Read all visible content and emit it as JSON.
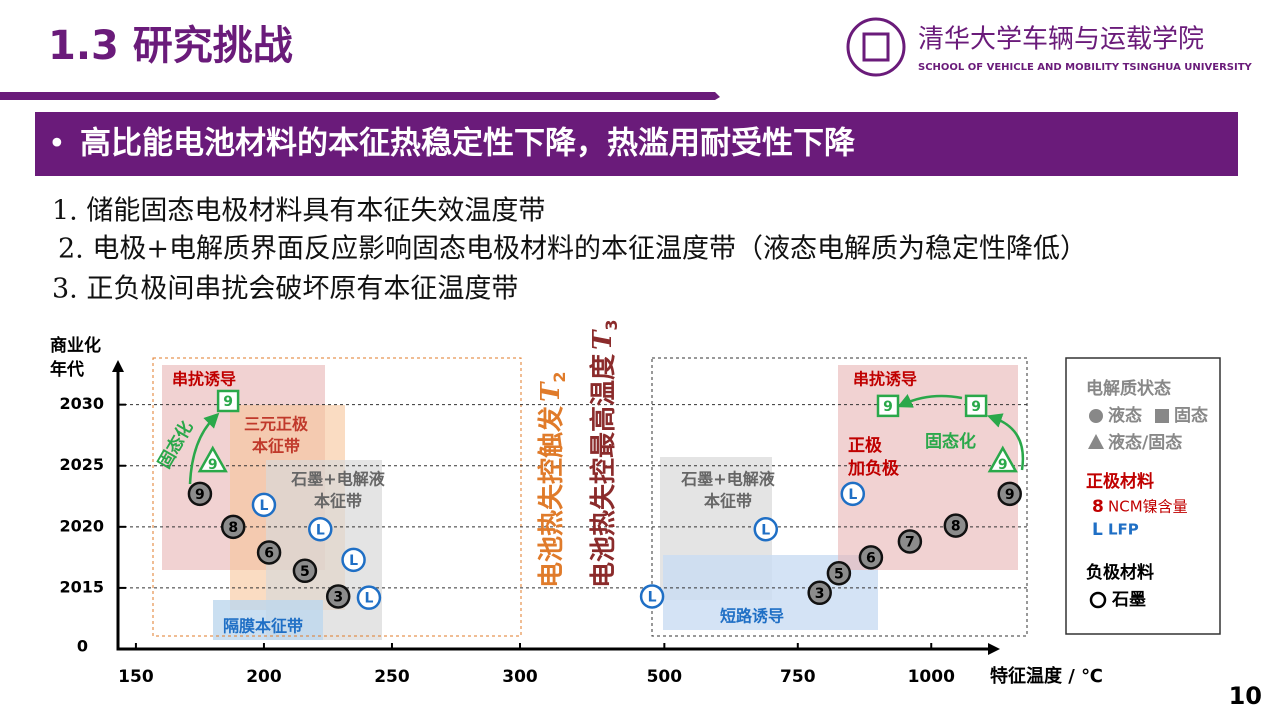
{
  "header": {
    "title": "1.3 研究挑战",
    "logo_cn": "清华大学车辆与运载学院",
    "logo_en": "SCHOOL OF VEHICLE AND MOBILITY TSINGHUA UNIVERSITY"
  },
  "banner": "高比能电池材料的本征热稳定性下降，热滥用耐受性下降",
  "points": [
    "1. 储能固态电极材料具有本征失效温度带",
    "2. 电极+电解质界面反应影响固态电极材料的本征温度带（液态电解质为稳定性降低）",
    "3. 正负极间串扰会破坏原有本征温度带"
  ],
  "page_number": "10",
  "chart": {
    "type": "scatter",
    "y_label": [
      "商业化",
      "年代"
    ],
    "y_origin_label": "0",
    "ylim": [
      2010,
      2033
    ],
    "yticks": [
      2015,
      2020,
      2025,
      2030
    ],
    "grid": true,
    "x_label": "特征温度 / ℃",
    "x_segments": [
      {
        "xlim": [
          143,
          300
        ],
        "xticks": [
          150,
          200,
          250,
          300
        ]
      },
      {
        "xlim": [
          460,
          1200
        ],
        "xticks": [
          500,
          750,
          1000
        ]
      }
    ],
    "points": [
      {
        "segment": 0,
        "shape": "circle",
        "label": "9",
        "x": 175,
        "y": 2022.7
      },
      {
        "segment": 0,
        "shape": "circle",
        "label": "8",
        "x": 188,
        "y": 2020
      },
      {
        "segment": 0,
        "shape": "circle",
        "label": "6",
        "x": 202,
        "y": 2017.9
      },
      {
        "segment": 0,
        "shape": "circle",
        "label": "5",
        "x": 216,
        "y": 2016.4
      },
      {
        "segment": 0,
        "shape": "circle",
        "label": "3",
        "x": 229,
        "y": 2014.3
      },
      {
        "segment": 0,
        "shape": "ring",
        "label": "L",
        "x": 200,
        "y": 2021.8
      },
      {
        "segment": 0,
        "shape": "ring",
        "label": "L",
        "x": 222,
        "y": 2019.8
      },
      {
        "segment": 0,
        "shape": "ring",
        "label": "L",
        "x": 235,
        "y": 2017.3
      },
      {
        "segment": 0,
        "shape": "ring",
        "label": "L",
        "x": 241,
        "y": 2014.2
      },
      {
        "segment": 0,
        "shape": "square",
        "label": "9",
        "x": 186,
        "y": 2030.3
      },
      {
        "segment": 0,
        "shape": "triangle",
        "label": "9",
        "x": 180,
        "y": 2025.3
      },
      {
        "segment": 1,
        "shape": "ring",
        "label": "L",
        "x": 477,
        "y": 2014.3
      },
      {
        "segment": 1,
        "shape": "ring",
        "label": "L",
        "x": 690,
        "y": 2019.8
      },
      {
        "segment": 1,
        "shape": "ring",
        "label": "L",
        "x": 853,
        "y": 2022.7
      },
      {
        "segment": 1,
        "shape": "circle",
        "label": "3",
        "x": 791,
        "y": 2014.6
      },
      {
        "segment": 1,
        "shape": "circle",
        "label": "5",
        "x": 827,
        "y": 2016.2
      },
      {
        "segment": 1,
        "shape": "circle",
        "label": "6",
        "x": 887,
        "y": 2017.5
      },
      {
        "segment": 1,
        "shape": "circle",
        "label": "7",
        "x": 960,
        "y": 2018.8
      },
      {
        "segment": 1,
        "shape": "circle",
        "label": "8",
        "x": 1046,
        "y": 2020.1
      },
      {
        "segment": 1,
        "shape": "circle",
        "label": "9",
        "x": 1147,
        "y": 2022.7
      },
      {
        "segment": 1,
        "shape": "square",
        "label": "9",
        "x": 919,
        "y": 2029.9
      },
      {
        "segment": 1,
        "shape": "square",
        "label": "9",
        "x": 1084,
        "y": 2029.9
      },
      {
        "segment": 1,
        "shape": "triangle",
        "label": "9",
        "x": 1134,
        "y": 2025.3
      }
    ],
    "regions": [
      {
        "label": [
          "串扰诱导"
        ]
      },
      {
        "label": [
          "三元正极",
          "本征带"
        ]
      },
      {
        "label": [
          "石墨+电解液",
          "本征带"
        ]
      },
      {
        "label": [
          "隔膜本征带"
        ]
      },
      {
        "label": [
          "石墨+电解液",
          "本征带"
        ]
      },
      {
        "label": [
          "短路诱导"
        ]
      },
      {
        "label": [
          "串扰诱导"
        ]
      }
    ],
    "annotations": {
      "cathode_anode": [
        "正极",
        "加负极"
      ],
      "solid_left": "固态化",
      "solid_right": "固态化",
      "t2": {
        "text": "电池热失控触发",
        "symbol": "T",
        "sub": "2"
      },
      "t3": {
        "text": "电池热失控最高温度",
        "symbol": "T",
        "sub": "3"
      }
    },
    "legend": {
      "title": "电解质状态",
      "states": [
        "液态",
        "固态",
        "液态/固态"
      ],
      "cathode_title": "正极材料",
      "cathode_items": [
        {
          "symbol": "8",
          "text": "NCM镍含量"
        },
        {
          "symbol": "L",
          "text": "LFP"
        }
      ],
      "anode_title": "负极材料",
      "anode_items": [
        "石墨"
      ]
    }
  }
}
